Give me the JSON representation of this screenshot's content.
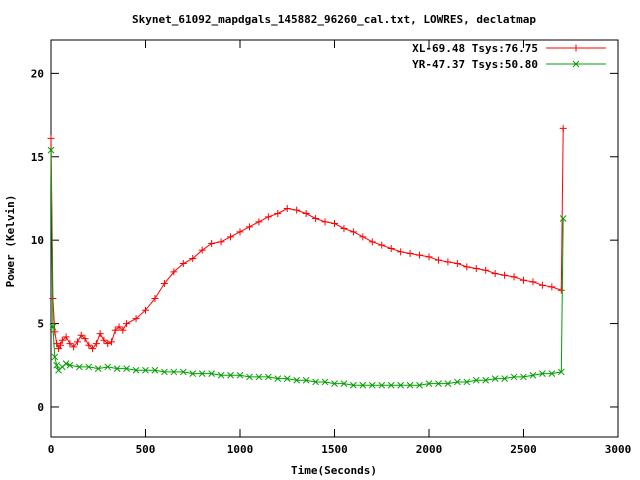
{
  "chart_data": {
    "type": "line",
    "title": "Skynet_61092_mapdgals_145882_96260_cal.txt, LOWRES, declatmap",
    "xlabel": "Time(Seconds)",
    "ylabel": "Power (Kelvin)",
    "xlim": [
      0,
      3000
    ],
    "ylim": [
      -1.8,
      22
    ],
    "x_ticks": [
      0,
      500,
      1000,
      1500,
      2000,
      2500,
      3000
    ],
    "x_tick_labels": [
      "0",
      "500",
      "1000",
      "1500",
      "2000",
      "2500",
      "3000"
    ],
    "y_ticks": [
      0,
      5,
      10,
      15,
      20
    ],
    "y_tick_labels": [
      "0",
      "5",
      "10",
      "15",
      "20"
    ],
    "grid": false,
    "legend_position": "top-right",
    "series": [
      {
        "name": "XL-69.48 Tsys:76.75",
        "color": "#ff0000",
        "marker": "plus",
        "x": [
          0,
          10,
          20,
          30,
          40,
          50,
          60,
          80,
          100,
          120,
          140,
          160,
          180,
          200,
          220,
          240,
          260,
          280,
          300,
          320,
          340,
          360,
          380,
          400,
          450,
          500,
          550,
          600,
          650,
          700,
          750,
          800,
          850,
          900,
          950,
          1000,
          1050,
          1100,
          1150,
          1200,
          1250,
          1300,
          1350,
          1400,
          1450,
          1500,
          1550,
          1600,
          1650,
          1700,
          1750,
          1800,
          1850,
          1900,
          1950,
          2000,
          2050,
          2100,
          2150,
          2200,
          2250,
          2300,
          2350,
          2400,
          2450,
          2500,
          2550,
          2600,
          2650,
          2700,
          2710
        ],
        "values": [
          16.1,
          6.5,
          4.5,
          3.8,
          3.5,
          3.7,
          4.0,
          4.2,
          3.8,
          3.6,
          3.9,
          4.3,
          4.1,
          3.7,
          3.5,
          3.8,
          4.4,
          4.0,
          3.8,
          3.9,
          4.6,
          4.8,
          4.6,
          5.0,
          5.3,
          5.8,
          6.5,
          7.4,
          8.1,
          8.6,
          8.9,
          9.4,
          9.8,
          9.9,
          10.2,
          10.5,
          10.8,
          11.1,
          11.4,
          11.6,
          11.9,
          11.8,
          11.6,
          11.3,
          11.1,
          11.0,
          10.7,
          10.5,
          10.2,
          9.9,
          9.7,
          9.5,
          9.3,
          9.2,
          9.1,
          9.0,
          8.8,
          8.7,
          8.6,
          8.4,
          8.3,
          8.2,
          8.0,
          7.9,
          7.8,
          7.6,
          7.5,
          7.3,
          7.2,
          7.0,
          16.7
        ]
      },
      {
        "name": "YR-47.37 Tsys:50.80",
        "color": "#00a000",
        "marker": "cross",
        "x": [
          0,
          10,
          20,
          30,
          40,
          60,
          80,
          100,
          150,
          200,
          250,
          300,
          350,
          400,
          450,
          500,
          550,
          600,
          650,
          700,
          750,
          800,
          850,
          900,
          950,
          1000,
          1050,
          1100,
          1150,
          1200,
          1250,
          1300,
          1350,
          1400,
          1450,
          1500,
          1550,
          1600,
          1650,
          1700,
          1750,
          1800,
          1850,
          1900,
          1950,
          2000,
          2050,
          2100,
          2150,
          2200,
          2250,
          2300,
          2350,
          2400,
          2450,
          2500,
          2550,
          2600,
          2650,
          2700,
          2710
        ],
        "values": [
          15.4,
          4.8,
          3.0,
          2.5,
          2.2,
          2.4,
          2.6,
          2.5,
          2.4,
          2.4,
          2.3,
          2.4,
          2.3,
          2.3,
          2.2,
          2.2,
          2.2,
          2.1,
          2.1,
          2.1,
          2.0,
          2.0,
          2.0,
          1.9,
          1.9,
          1.9,
          1.8,
          1.8,
          1.8,
          1.7,
          1.7,
          1.6,
          1.6,
          1.5,
          1.5,
          1.4,
          1.4,
          1.3,
          1.3,
          1.3,
          1.3,
          1.3,
          1.3,
          1.3,
          1.3,
          1.4,
          1.4,
          1.4,
          1.5,
          1.5,
          1.6,
          1.6,
          1.7,
          1.7,
          1.8,
          1.8,
          1.9,
          2.0,
          2.0,
          2.1,
          11.3
        ]
      }
    ]
  }
}
